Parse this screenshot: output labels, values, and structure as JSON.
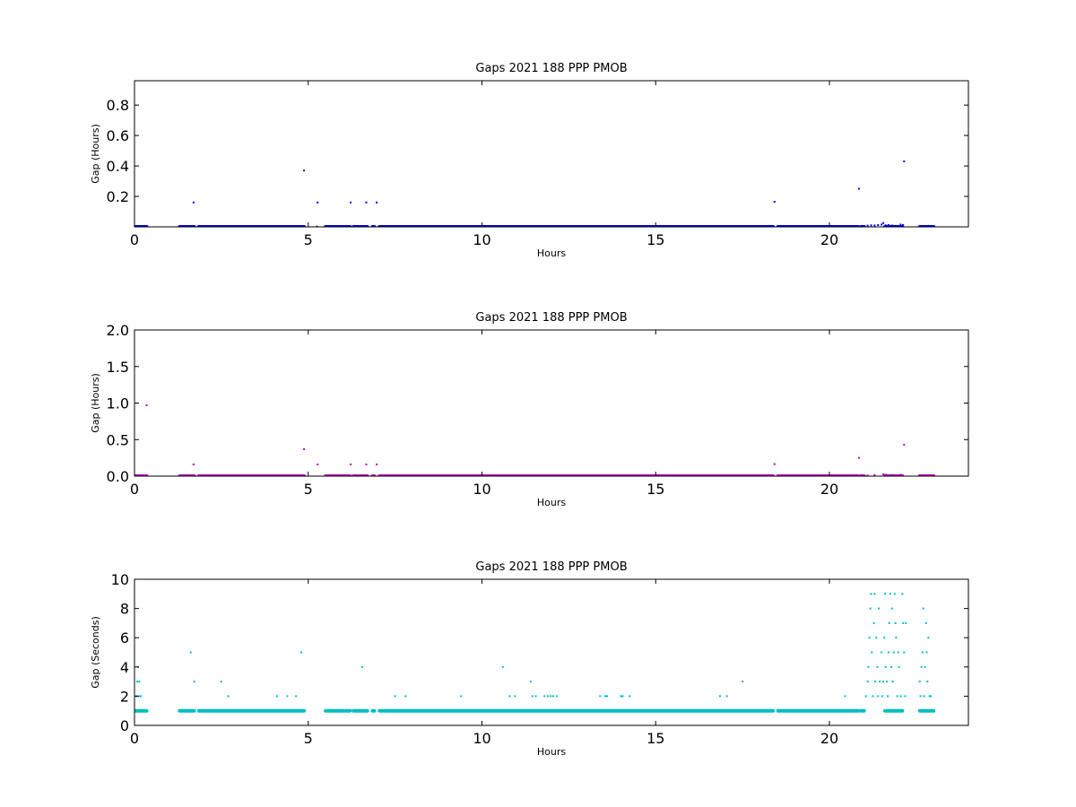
{
  "chart_data": [
    {
      "type": "scatter",
      "title": "Gaps 2021 188 PPP  PMOB",
      "xlabel": "Hours",
      "ylabel": "Gap (Hours)",
      "xlim": [
        0,
        24
      ],
      "ylim": [
        0,
        0.96
      ],
      "xticks": [
        0,
        5,
        10,
        15,
        20
      ],
      "yticks": [
        0.2,
        0.4,
        0.6,
        0.8
      ],
      "ytick_labels": [
        "0.2",
        "0.4",
        "0.6",
        "0.8"
      ],
      "grid": false,
      "color": "#0000ff",
      "baseline": {
        "value": 0.0003,
        "segments": [
          [
            0.0,
            0.35
          ],
          [
            1.3,
            1.72
          ],
          [
            1.85,
            4.88
          ],
          [
            5.5,
            6.2
          ],
          [
            6.3,
            6.6
          ],
          [
            6.65,
            6.7
          ],
          [
            6.85,
            6.9
          ],
          [
            7.05,
            18.38
          ],
          [
            18.52,
            20.82
          ],
          [
            20.9,
            21.0
          ],
          [
            21.6,
            22.1
          ],
          [
            22.6,
            23.0
          ]
        ]
      },
      "points": [
        [
          1.7,
          0.16
        ],
        [
          4.88,
          0.37
        ],
        [
          5.27,
          0.16
        ],
        [
          6.22,
          0.16
        ],
        [
          6.67,
          0.16
        ],
        [
          6.97,
          0.16
        ],
        [
          18.42,
          0.165
        ],
        [
          20.85,
          0.25
        ],
        [
          22.15,
          0.43
        ],
        [
          5.25,
          0.002
        ],
        [
          21.1,
          0.008
        ],
        [
          21.2,
          0.01
        ],
        [
          21.3,
          0.009
        ],
        [
          21.4,
          0.012
        ],
        [
          21.5,
          0.015
        ],
        [
          21.55,
          0.025
        ],
        [
          21.62,
          0.01
        ],
        [
          21.7,
          0.012
        ],
        [
          21.8,
          0.009
        ],
        [
          22.05,
          0.015
        ],
        [
          22.12,
          0.012
        ]
      ]
    },
    {
      "type": "scatter",
      "title": "Gaps 2021 188 PPP  PMOB",
      "xlabel": "Hours",
      "ylabel": "Gap (Hours)",
      "xlim": [
        0,
        24
      ],
      "ylim": [
        0,
        2.0
      ],
      "xticks": [
        0,
        5,
        10,
        15,
        20
      ],
      "yticks": [
        0.0,
        0.5,
        1.0,
        1.5,
        2.0
      ],
      "ytick_labels": [
        "0.0",
        "0.5",
        "1.0",
        "1.5",
        "2.0"
      ],
      "grid": false,
      "color": "#bf00bf",
      "baseline": {
        "value": 0.0003,
        "segments": [
          [
            0.0,
            0.35
          ],
          [
            1.3,
            1.72
          ],
          [
            1.85,
            4.88
          ],
          [
            5.5,
            6.2
          ],
          [
            6.3,
            6.6
          ],
          [
            6.65,
            6.7
          ],
          [
            6.85,
            6.9
          ],
          [
            7.05,
            18.38
          ],
          [
            18.52,
            20.82
          ],
          [
            20.9,
            21.0
          ],
          [
            21.6,
            22.1
          ],
          [
            22.6,
            23.0
          ]
        ]
      },
      "points": [
        [
          0.35,
          0.97
        ],
        [
          1.7,
          0.16
        ],
        [
          4.88,
          0.37
        ],
        [
          5.27,
          0.16
        ],
        [
          6.22,
          0.16
        ],
        [
          6.67,
          0.16
        ],
        [
          6.97,
          0.16
        ],
        [
          18.42,
          0.165
        ],
        [
          20.85,
          0.25
        ],
        [
          22.15,
          0.43
        ],
        [
          21.1,
          0.01
        ],
        [
          21.3,
          0.015
        ],
        [
          21.55,
          0.025
        ],
        [
          21.62,
          0.02
        ],
        [
          21.8,
          0.015
        ],
        [
          22.05,
          0.02
        ]
      ]
    },
    {
      "type": "scatter",
      "title": "Gaps 2021 188 PPP  PMOB",
      "xlabel": "Hours",
      "ylabel": "Gap (Seconds)",
      "xlim": [
        0,
        24
      ],
      "ylim": [
        0,
        10
      ],
      "xticks": [
        0,
        5,
        10,
        15,
        20
      ],
      "yticks": [
        0,
        2,
        4,
        6,
        8,
        10
      ],
      "ytick_labels": [
        "0",
        "2",
        "4",
        "6",
        "8",
        "10"
      ],
      "grid": false,
      "color": "#00bfbf",
      "baseline": {
        "value": 1,
        "segments": [
          [
            0.0,
            0.35
          ],
          [
            1.3,
            1.72
          ],
          [
            1.85,
            4.88
          ],
          [
            5.5,
            6.2
          ],
          [
            6.3,
            6.6
          ],
          [
            6.65,
            6.7
          ],
          [
            6.85,
            6.9
          ],
          [
            7.05,
            18.38
          ],
          [
            18.52,
            20.82
          ],
          [
            20.9,
            21.0
          ],
          [
            21.6,
            22.1
          ],
          [
            22.6,
            23.0
          ]
        ]
      },
      "points": [
        [
          0.05,
          2
        ],
        [
          0.08,
          3
        ],
        [
          0.1,
          4
        ],
        [
          0.12,
          2
        ],
        [
          0.14,
          3
        ],
        [
          0.18,
          2
        ],
        [
          1.62,
          5
        ],
        [
          1.72,
          3
        ],
        [
          2.5,
          3
        ],
        [
          2.7,
          2
        ],
        [
          4.1,
          2
        ],
        [
          4.4,
          2
        ],
        [
          4.65,
          2
        ],
        [
          4.8,
          5
        ],
        [
          6.55,
          4
        ],
        [
          7.5,
          2
        ],
        [
          7.8,
          2
        ],
        [
          9.4,
          2
        ],
        [
          10.6,
          4
        ],
        [
          10.8,
          2
        ],
        [
          10.95,
          2
        ],
        [
          11.4,
          3
        ],
        [
          11.45,
          2
        ],
        [
          11.55,
          2
        ],
        [
          11.8,
          2
        ],
        [
          11.9,
          2
        ],
        [
          11.98,
          2
        ],
        [
          12.05,
          2
        ],
        [
          12.15,
          2
        ],
        [
          13.4,
          2
        ],
        [
          13.55,
          2
        ],
        [
          13.6,
          2
        ],
        [
          14.0,
          2
        ],
        [
          14.05,
          2
        ],
        [
          14.25,
          2
        ],
        [
          16.85,
          2
        ],
        [
          17.05,
          2
        ],
        [
          17.5,
          3
        ],
        [
          20.45,
          2
        ],
        [
          21.05,
          2
        ],
        [
          21.1,
          3
        ],
        [
          21.12,
          4
        ],
        [
          21.15,
          6
        ],
        [
          21.18,
          8
        ],
        [
          21.2,
          9
        ],
        [
          21.22,
          5
        ],
        [
          21.25,
          2
        ],
        [
          21.28,
          7
        ],
        [
          21.3,
          9
        ],
        [
          21.32,
          3
        ],
        [
          21.35,
          6
        ],
        [
          21.38,
          4
        ],
        [
          21.4,
          2
        ],
        [
          21.42,
          8
        ],
        [
          21.45,
          3
        ],
        [
          21.5,
          5
        ],
        [
          21.52,
          2
        ],
        [
          21.55,
          3
        ],
        [
          21.58,
          6
        ],
        [
          21.6,
          9
        ],
        [
          21.62,
          4
        ],
        [
          21.65,
          3
        ],
        [
          21.68,
          2
        ],
        [
          21.7,
          5
        ],
        [
          21.72,
          7
        ],
        [
          21.75,
          9
        ],
        [
          21.78,
          4
        ],
        [
          21.8,
          8
        ],
        [
          21.82,
          3
        ],
        [
          21.85,
          5
        ],
        [
          21.88,
          9
        ],
        [
          21.9,
          7
        ],
        [
          21.92,
          6
        ],
        [
          21.95,
          2
        ],
        [
          21.98,
          5
        ],
        [
          22.0,
          4
        ],
        [
          22.05,
          2
        ],
        [
          22.1,
          9
        ],
        [
          22.12,
          7
        ],
        [
          22.15,
          5
        ],
        [
          22.18,
          2
        ],
        [
          22.2,
          7
        ],
        [
          22.6,
          3
        ],
        [
          22.62,
          2
        ],
        [
          22.65,
          4
        ],
        [
          22.68,
          5
        ],
        [
          22.7,
          8
        ],
        [
          22.72,
          2
        ],
        [
          22.75,
          4
        ],
        [
          22.78,
          7
        ],
        [
          22.8,
          5
        ],
        [
          22.82,
          3
        ],
        [
          22.85,
          6
        ],
        [
          22.88,
          2
        ],
        [
          22.92,
          2
        ]
      ]
    }
  ]
}
